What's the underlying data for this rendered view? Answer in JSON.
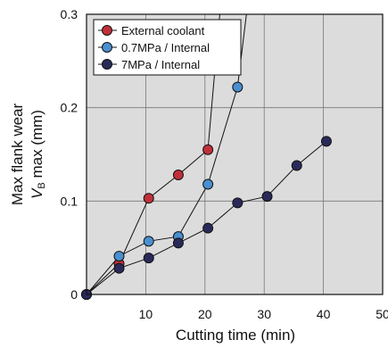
{
  "chart_data": {
    "type": "line",
    "xlabel": "Cutting time (min)",
    "ylabel": {
      "line1": "Max flank wear",
      "line2_symbol": "V",
      "line2_sub": "B",
      "line2_rest": " max (mm)"
    },
    "xlim": [
      0,
      50
    ],
    "ylim": [
      0,
      0.3
    ],
    "xticks": [
      10,
      20,
      30,
      40,
      50
    ],
    "yticks": [
      0,
      0.1,
      0.2,
      0.3
    ],
    "ytick_labels": [
      "0",
      "0.1",
      "0.2",
      "0.3"
    ],
    "grid": true,
    "plot_background": "#dcdcdc",
    "legend_position": "top-left",
    "series": [
      {
        "name": "External coolant",
        "color": "#c0303a",
        "x": [
          0,
          5.5,
          10.5,
          15.5,
          20.5
        ],
        "y": [
          0,
          0.033,
          0.103,
          0.128,
          0.155
        ],
        "trend_extension": {
          "x": 22.5,
          "y": 0.3
        }
      },
      {
        "name": "0.7MPa / Internal",
        "color": "#4a8fd0",
        "x": [
          0,
          5.5,
          10.5,
          15.5,
          20.5,
          25.5
        ],
        "y": [
          0,
          0.041,
          0.057,
          0.062,
          0.118,
          0.222
        ],
        "trend_extension": {
          "x": 27,
          "y": 0.3
        }
      },
      {
        "name": "7MPa / Internal",
        "color": "#2a2a5a",
        "x": [
          0,
          5.5,
          10.5,
          15.5,
          20.5,
          25.5,
          30.5,
          35.5,
          40.5
        ],
        "y": [
          0,
          0.028,
          0.039,
          0.055,
          0.071,
          0.098,
          0.105,
          0.138,
          0.164
        ]
      }
    ]
  }
}
